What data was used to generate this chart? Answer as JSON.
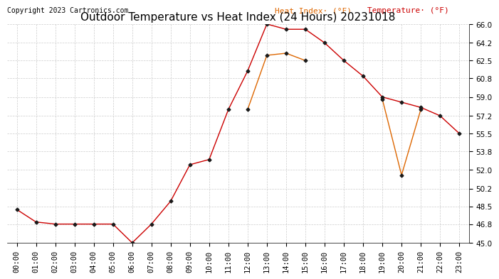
{
  "title": "Outdoor Temperature vs Heat Index (24 Hours) 20231018",
  "copyright": "Copyright 2023 Cartronics.com",
  "legend_heat": "Heat Index· (°F)",
  "legend_temp": "Temperature· (°F)",
  "hours": [
    "00:00",
    "01:00",
    "02:00",
    "03:00",
    "04:00",
    "05:00",
    "06:00",
    "07:00",
    "08:00",
    "09:00",
    "10:00",
    "11:00",
    "12:00",
    "13:00",
    "14:00",
    "15:00",
    "16:00",
    "17:00",
    "18:00",
    "19:00",
    "20:00",
    "21:00",
    "22:00",
    "23:00"
  ],
  "temperature": [
    48.2,
    47.0,
    46.8,
    46.8,
    46.8,
    46.8,
    45.0,
    46.8,
    49.0,
    52.5,
    53.0,
    57.8,
    61.5,
    66.0,
    65.5,
    65.5,
    64.2,
    62.5,
    61.0,
    59.0,
    58.5,
    58.0,
    57.2,
    55.5
  ],
  "heat_index": [
    null,
    null,
    null,
    null,
    null,
    null,
    null,
    null,
    null,
    null,
    null,
    null,
    57.8,
    63.0,
    63.2,
    62.5,
    null,
    null,
    null,
    58.8,
    51.5,
    57.8,
    null,
    null
  ],
  "ylim": [
    45.0,
    66.0
  ],
  "yticks": [
    45.0,
    46.8,
    48.5,
    50.2,
    52.0,
    53.8,
    55.5,
    57.2,
    59.0,
    60.8,
    62.5,
    64.2,
    66.0
  ],
  "temp_color": "#cc0000",
  "heat_color": "#dd6600",
  "marker_color": "#1a1a1a",
  "grid_color": "#cccccc",
  "bg_color": "#ffffff",
  "title_fontsize": 11,
  "axis_fontsize": 7.5,
  "copyright_fontsize": 7,
  "legend_fontsize": 8
}
